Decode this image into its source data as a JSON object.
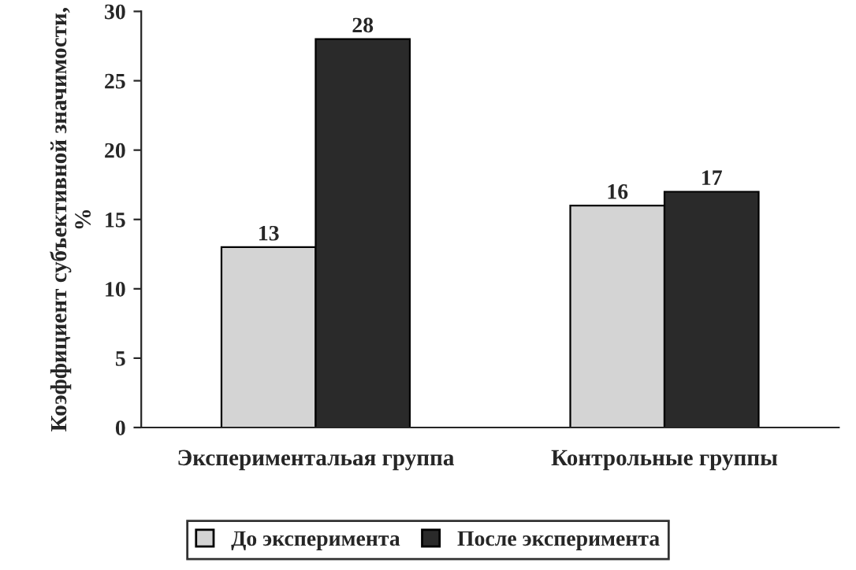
{
  "chart_data": {
    "type": "bar",
    "ylabel": "Коэффициент субъективной значимости, %",
    "categories": [
      "Экспериментальая группа",
      "Контрольные группы"
    ],
    "series": [
      {
        "name": "До эксперимента",
        "color": "#d4d4d4",
        "values": [
          13,
          16
        ]
      },
      {
        "name": "После эксперимента",
        "color": "#2a2a2a",
        "values": [
          28,
          17
        ]
      }
    ],
    "ylim": [
      0,
      30
    ],
    "yticks": [
      0,
      5,
      10,
      15,
      20,
      25,
      30
    ],
    "data_labels": true,
    "legend": "bottom",
    "grid": false
  }
}
